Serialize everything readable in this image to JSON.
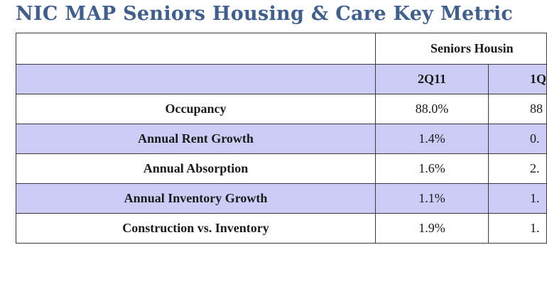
{
  "title": "NIC MAP Seniors Housing & Care Key Metric",
  "table": {
    "group_header": "Seniors Housin",
    "periods": [
      "2Q11",
      "1Q"
    ],
    "rows": [
      {
        "label": "Occupancy",
        "values": [
          "88.0%",
          "88"
        ]
      },
      {
        "label": "Annual Rent Growth",
        "values": [
          "1.4%",
          "0."
        ]
      },
      {
        "label": "Annual Absorption",
        "values": [
          "1.6%",
          "2."
        ]
      },
      {
        "label": "Annual Inventory Growth",
        "values": [
          "1.1%",
          "1."
        ]
      },
      {
        "label": "Construction vs. Inventory",
        "values": [
          "1.9%",
          "1."
        ]
      }
    ]
  }
}
